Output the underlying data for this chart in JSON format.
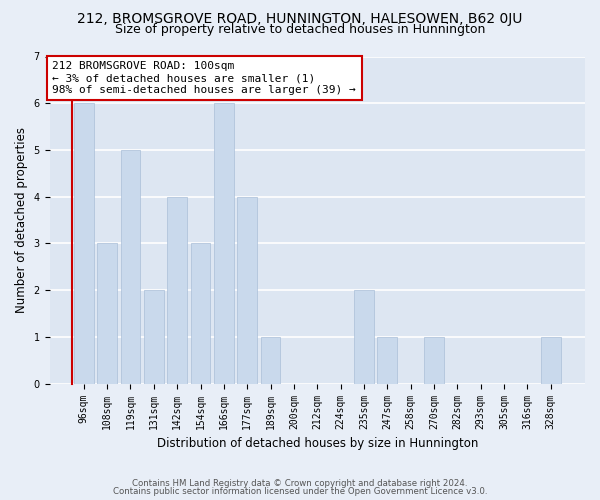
{
  "title": "212, BROMSGROVE ROAD, HUNNINGTON, HALESOWEN, B62 0JU",
  "subtitle": "Size of property relative to detached houses in Hunnington",
  "xlabel": "Distribution of detached houses by size in Hunnington",
  "ylabel": "Number of detached properties",
  "categories": [
    "96sqm",
    "108sqm",
    "119sqm",
    "131sqm",
    "142sqm",
    "154sqm",
    "166sqm",
    "177sqm",
    "189sqm",
    "200sqm",
    "212sqm",
    "224sqm",
    "235sqm",
    "247sqm",
    "258sqm",
    "270sqm",
    "282sqm",
    "293sqm",
    "305sqm",
    "316sqm",
    "328sqm"
  ],
  "values": [
    6,
    3,
    5,
    2,
    4,
    3,
    6,
    4,
    1,
    0,
    0,
    0,
    2,
    1,
    0,
    1,
    0,
    0,
    0,
    0,
    1
  ],
  "bar_color": "#c9d9ec",
  "bar_edge_color": "#aabfd8",
  "annotation_text_line1": "212 BROMSGROVE ROAD: 100sqm",
  "annotation_text_line2": "← 3% of detached houses are smaller (1)",
  "annotation_text_line3": "98% of semi-detached houses are larger (39) →",
  "annotation_box_facecolor": "#ffffff",
  "annotation_box_edgecolor": "#cc0000",
  "redline_x": -0.5,
  "ylim": [
    0,
    7
  ],
  "yticks": [
    0,
    1,
    2,
    3,
    4,
    5,
    6,
    7
  ],
  "fig_bg_color": "#e8eef7",
  "plot_bg_color": "#dde6f2",
  "grid_color": "#ffffff",
  "title_fontsize": 10,
  "subtitle_fontsize": 9,
  "axis_label_fontsize": 8.5,
  "tick_fontsize": 7,
  "annotation_fontsize": 8,
  "footer_fontsize": 6.2,
  "footer_line1": "Contains HM Land Registry data © Crown copyright and database right 2024.",
  "footer_line2": "Contains public sector information licensed under the Open Government Licence v3.0."
}
